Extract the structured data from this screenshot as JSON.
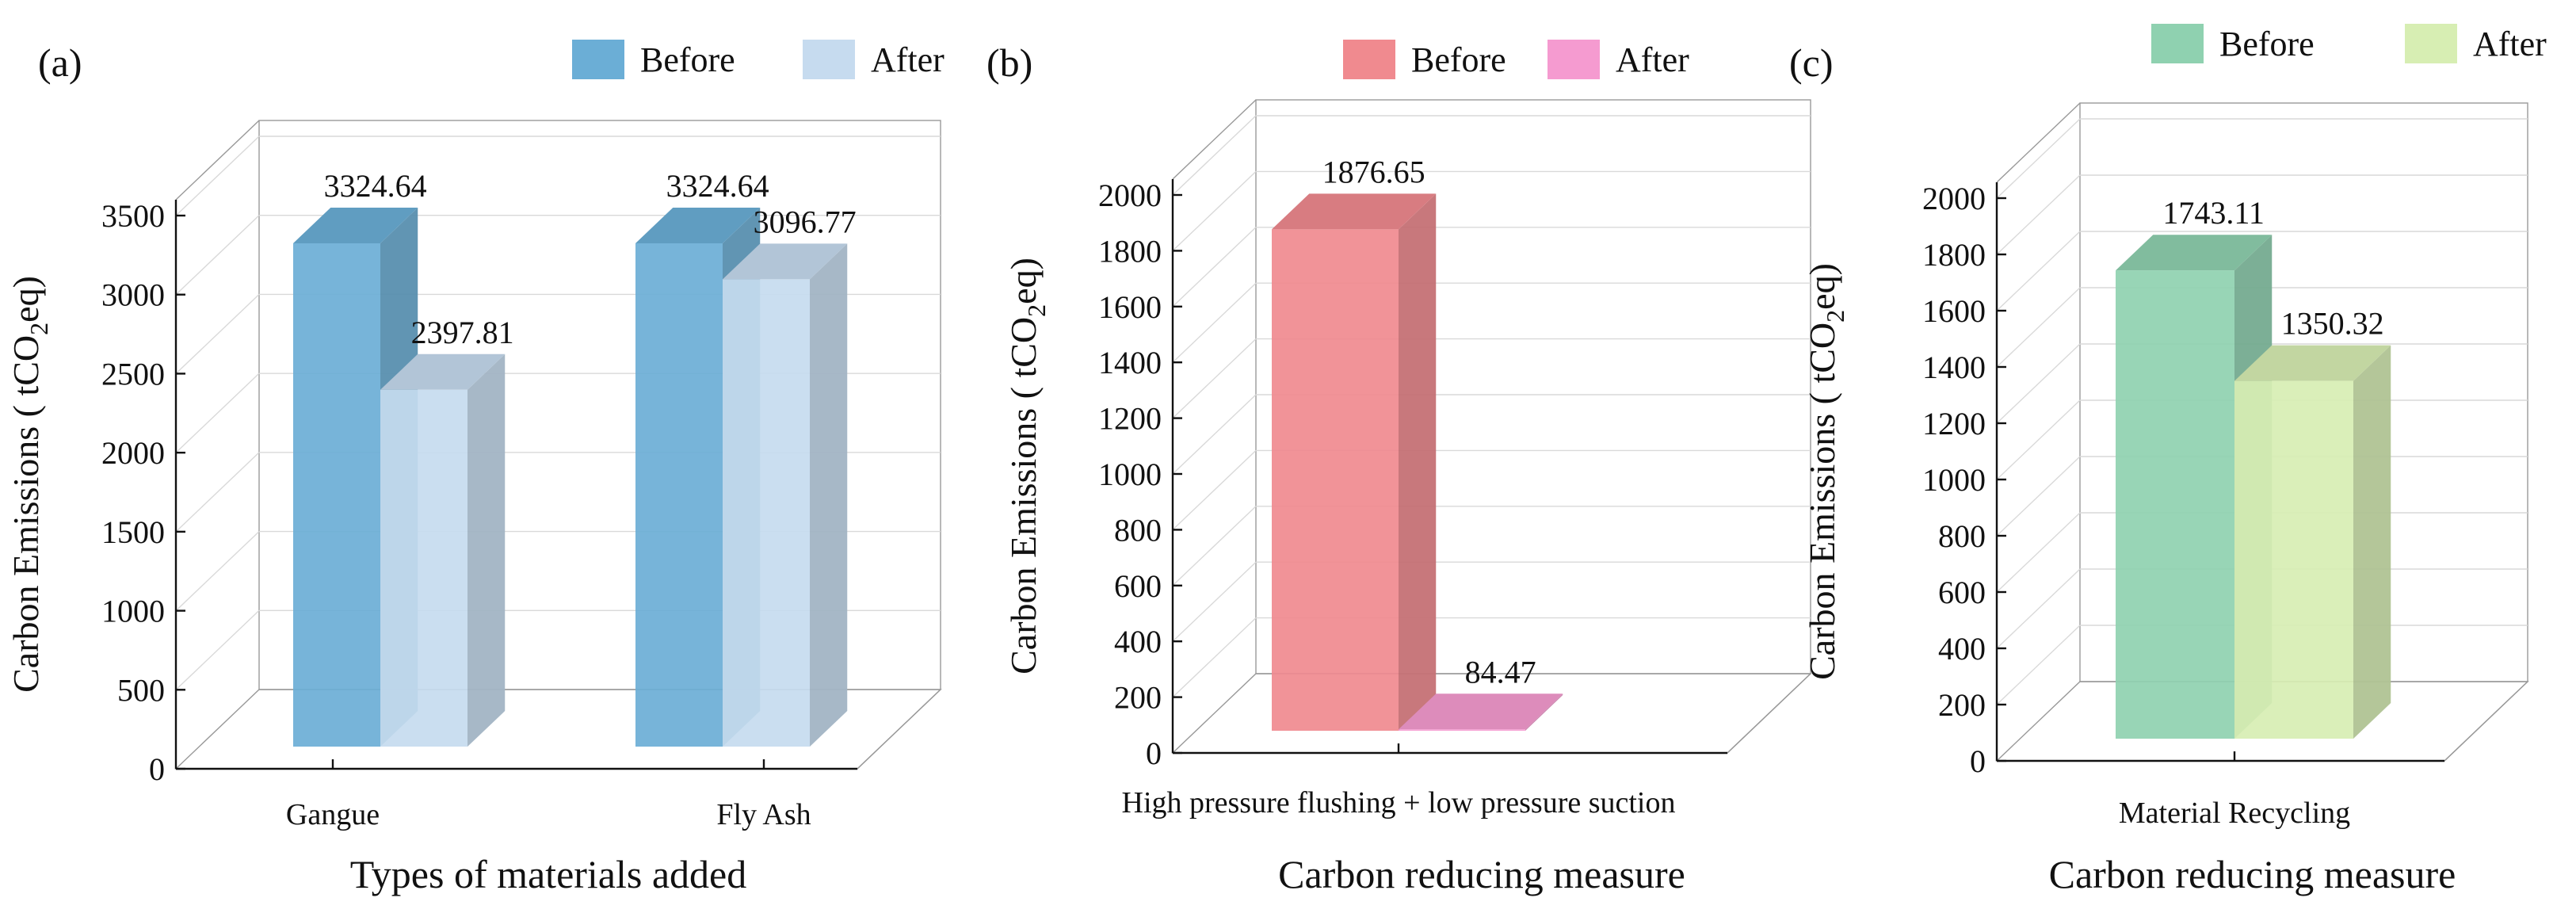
{
  "chart_data": [
    {
      "type": "bar",
      "panel_label": "(a)",
      "categories": [
        "Gangue",
        "Fly Ash"
      ],
      "series": [
        {
          "name": "Before",
          "values": [
            3324.64,
            3324.64
          ],
          "color": "#6baed6"
        },
        {
          "name": "After",
          "values": [
            2397.81,
            3096.77
          ],
          "color": "#c6dbef"
        }
      ],
      "value_labels": [
        [
          "3324.64",
          "3324.64"
        ],
        [
          "2397.81",
          "3096.77"
        ]
      ],
      "xlabel": "Types of materials added",
      "ylabel_prefix": "Carbon Emissions ( tCO",
      "ylabel_sub": "2",
      "ylabel_suffix": "eq)",
      "ylim": [
        0,
        3500
      ],
      "yticks": [
        0,
        500,
        1000,
        1500,
        2000,
        2500,
        3000,
        3500
      ],
      "legend_position": "top-right",
      "grid": true
    },
    {
      "type": "bar",
      "panel_label": "(b)",
      "categories": [
        "High pressure flushing + low pressure suction"
      ],
      "series": [
        {
          "name": "Before",
          "values": [
            1876.65
          ],
          "color": "#f08a8f"
        },
        {
          "name": "After",
          "values": [
            84.47
          ],
          "color": "#f59bd0"
        }
      ],
      "value_labels": [
        [
          "1876.65"
        ],
        [
          "84.47"
        ]
      ],
      "xlabel": "Carbon reducing measure",
      "ylabel_prefix": "Carbon Emissions ( tCO",
      "ylabel_sub": "2",
      "ylabel_suffix": "eq)",
      "ylim": [
        0,
        2000
      ],
      "yticks": [
        0,
        200,
        400,
        600,
        800,
        1000,
        1200,
        1400,
        1600,
        1800,
        2000
      ],
      "legend_position": "top-right",
      "grid": true
    },
    {
      "type": "bar",
      "panel_label": "(c)",
      "categories": [
        "Material Recycling"
      ],
      "series": [
        {
          "name": "Before",
          "values": [
            1743.11
          ],
          "color": "#8fd1b0"
        },
        {
          "name": "After",
          "values": [
            1350.32
          ],
          "color": "#d7eeb3"
        }
      ],
      "value_labels": [
        [
          "1743.11"
        ],
        [
          "1350.32"
        ]
      ],
      "xlabel": "Carbon reducing measure",
      "ylabel_prefix": "Carbon Emissions ( tCO",
      "ylabel_sub": "2",
      "ylabel_suffix": "eq)",
      "ylim": [
        0,
        2000
      ],
      "yticks": [
        0,
        200,
        400,
        600,
        800,
        1000,
        1200,
        1400,
        1600,
        1800,
        2000
      ],
      "legend_position": "top-right",
      "grid": true
    }
  ]
}
